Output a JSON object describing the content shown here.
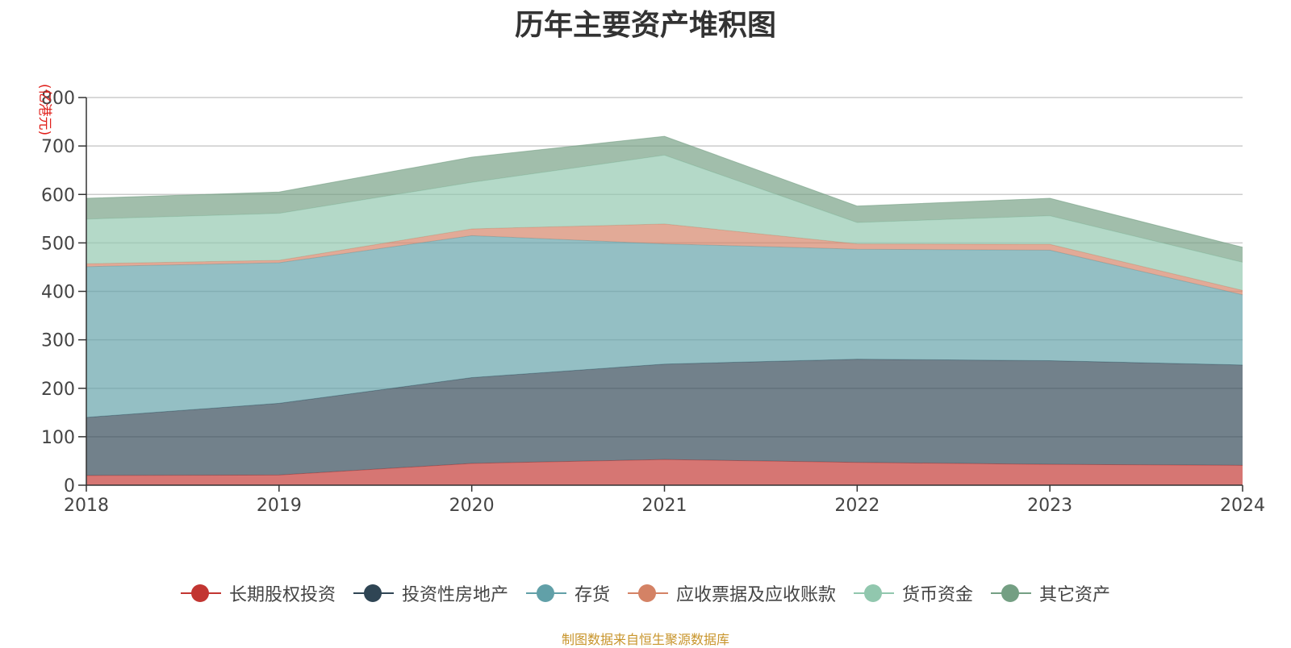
{
  "page": {
    "title": "历年主要资产堆积图",
    "source": "制图数据来自恒生聚源数据库"
  },
  "chart_data": {
    "type": "area",
    "stacked": true,
    "title": "历年主要资产堆积图",
    "ylabel": "(亿港元)",
    "xlabel": "",
    "categories": [
      "2018",
      "2019",
      "2020",
      "2021",
      "2022",
      "2023",
      "2024"
    ],
    "ylim": [
      0,
      800
    ],
    "yticks": [
      0,
      100,
      200,
      300,
      400,
      500,
      600,
      700,
      800
    ],
    "grid": true,
    "legend_position": "bottom",
    "series": [
      {
        "name": "长期股权投资",
        "color": "#c23531",
        "values": [
          20,
          21,
          45,
          53,
          47,
          43,
          41
        ]
      },
      {
        "name": "投资性房地产",
        "color": "#2f4554",
        "values": [
          120,
          148,
          177,
          197,
          213,
          214,
          207
        ]
      },
      {
        "name": "存货",
        "color": "#61a0a8",
        "values": [
          311,
          290,
          293,
          248,
          227,
          228,
          145
        ]
      },
      {
        "name": "应收票据及应收账款",
        "color": "#d48265",
        "values": [
          6,
          5,
          14,
          41,
          11,
          12,
          9
        ]
      },
      {
        "name": "货币资金",
        "color": "#91c7ae",
        "values": [
          92,
          97,
          96,
          142,
          44,
          59,
          58
        ]
      },
      {
        "name": "其它资产",
        "color": "#749f83",
        "values": [
          43,
          44,
          52,
          39,
          34,
          36,
          31
        ]
      }
    ]
  }
}
